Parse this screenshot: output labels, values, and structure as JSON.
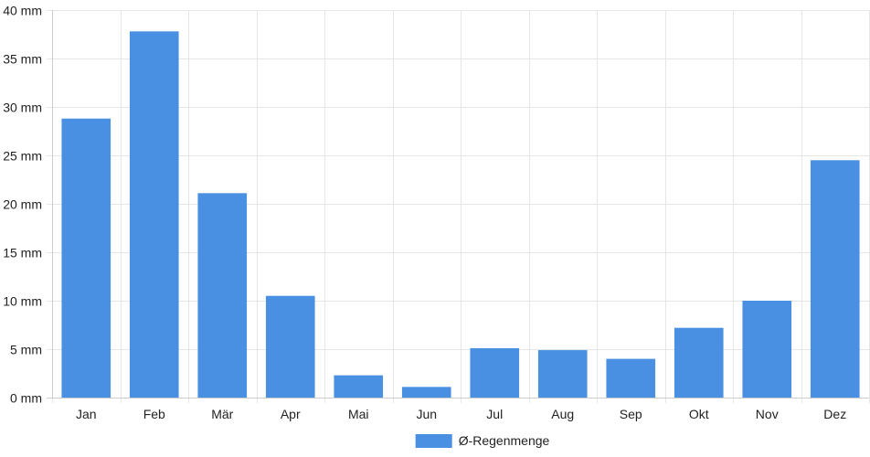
{
  "chart_data": {
    "type": "bar",
    "categories": [
      "Jan",
      "Feb",
      "Mär",
      "Apr",
      "Mai",
      "Jun",
      "Jul",
      "Aug",
      "Sep",
      "Okt",
      "Nov",
      "Dez"
    ],
    "series": [
      {
        "name": "Ø-Regenmenge",
        "color": "#4a90e2",
        "values": [
          28.8,
          37.8,
          21.1,
          10.5,
          2.3,
          1.1,
          5.1,
          4.9,
          4.0,
          7.2,
          10.0,
          24.5
        ]
      }
    ],
    "ylim": [
      0,
      40
    ],
    "yticks": [
      0,
      5,
      10,
      15,
      20,
      25,
      30,
      35,
      40
    ],
    "ytick_labels": [
      "0 mm",
      "5 mm",
      "10 mm",
      "15 mm",
      "20 mm",
      "25 mm",
      "30 mm",
      "35 mm",
      "40 mm"
    ],
    "grid": true,
    "legend_position": "bottom"
  }
}
